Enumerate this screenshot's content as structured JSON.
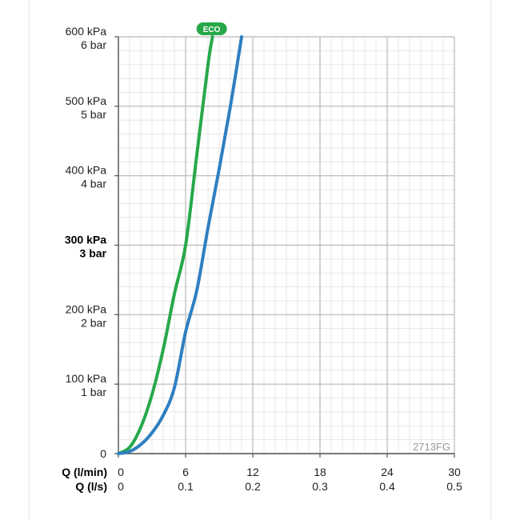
{
  "chart_data": {
    "type": "line",
    "xlim": [
      0,
      30
    ],
    "ylim": [
      0,
      600
    ],
    "grid": true,
    "y_ticks": [
      {
        "value": 600,
        "line1": "600 kPa",
        "line2": "6 bar",
        "bold": false
      },
      {
        "value": 500,
        "line1": "500 kPa",
        "line2": "5 bar",
        "bold": false
      },
      {
        "value": 400,
        "line1": "400 kPa",
        "line2": "4 bar",
        "bold": false
      },
      {
        "value": 300,
        "line1": "300 kPa",
        "line2": "3 bar",
        "bold": true
      },
      {
        "value": 200,
        "line1": "200 kPa",
        "line2": "2 bar",
        "bold": false
      },
      {
        "value": 100,
        "line1": "100 kPa",
        "line2": "1 bar",
        "bold": false
      },
      {
        "value": 0,
        "line1": "0",
        "line2": "",
        "bold": false
      }
    ],
    "x_row1_label": "Q (l/min)",
    "x_row2_label": "Q (l/s)",
    "x_ticks": [
      {
        "value": 0,
        "lpm": "0",
        "lps": "0"
      },
      {
        "value": 6,
        "lpm": "6",
        "lps": "0.1"
      },
      {
        "value": 12,
        "lpm": "12",
        "lps": "0.2"
      },
      {
        "value": 18,
        "lpm": "18",
        "lps": "0.3"
      },
      {
        "value": 24,
        "lpm": "24",
        "lps": "0.4"
      },
      {
        "value": 30,
        "lpm": "30",
        "lps": "0.5"
      }
    ],
    "series": [
      {
        "key": "eco",
        "label": "ECO",
        "color": "#27a84a",
        "x": [
          0,
          1,
          2,
          3,
          4,
          5,
          6,
          7,
          8,
          8.4
        ],
        "y": [
          0,
          9,
          38,
          85,
          150,
          230,
          300,
          430,
          560,
          600
        ]
      },
      {
        "key": "standard",
        "color": "#2f7fc1",
        "x": [
          0,
          1,
          2,
          3,
          4,
          5,
          6,
          7,
          8,
          9,
          10,
          11
        ],
        "y": [
          0,
          3,
          13,
          30,
          55,
          95,
          175,
          235,
          325,
          410,
          500,
          600
        ]
      }
    ],
    "code_label": "2713FG"
  }
}
